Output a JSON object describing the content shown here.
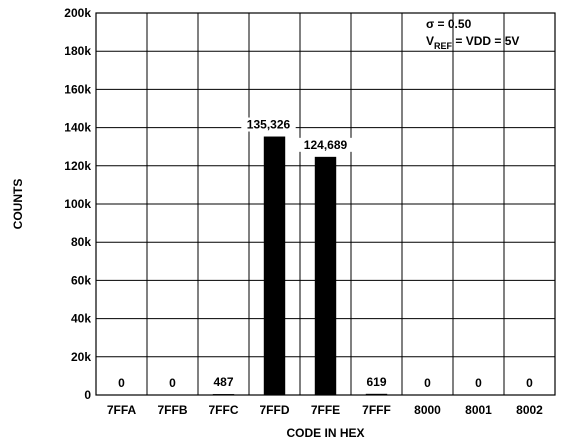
{
  "chart_data": {
    "type": "bar",
    "xlabel": "CODE IN HEX",
    "ylabel": "COUNTS",
    "ylim": [
      0,
      200000
    ],
    "yticks": [
      0,
      20000,
      40000,
      60000,
      80000,
      100000,
      120000,
      140000,
      160000,
      180000,
      200000
    ],
    "ytick_labels": [
      "0",
      "20k",
      "40k",
      "60k",
      "80k",
      "100k",
      "120k",
      "140k",
      "160k",
      "180k",
      "200k"
    ],
    "categories": [
      "7FFA",
      "7FFB",
      "7FFC",
      "7FFD",
      "7FFE",
      "7FFF",
      "8000",
      "8001",
      "8002"
    ],
    "values": [
      0,
      0,
      487,
      135326,
      124689,
      619,
      0,
      0,
      0
    ],
    "data_labels": [
      "0",
      "0",
      "487",
      "135,326",
      "124,689",
      "619",
      "0",
      "0",
      "0"
    ],
    "annotation": {
      "line1": "σ = 0.50",
      "line2_prefix": "V",
      "line2_sub": "REF",
      "line2_suffix": " = VDD = 5V"
    },
    "grid": true,
    "bar_color": "#000000"
  }
}
